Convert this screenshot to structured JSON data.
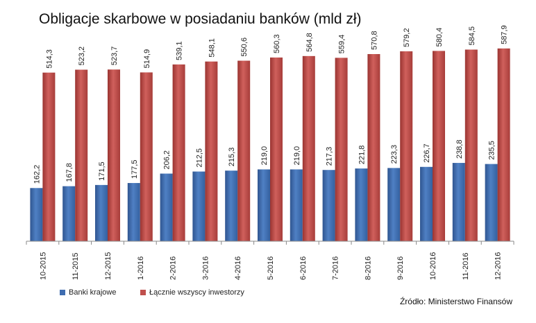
{
  "chart_data": {
    "type": "bar",
    "title": "Obligacje skarbowe w posiadaniu banków (mld zł)",
    "source": "Źródło: Ministerstwo Finansów",
    "categories": [
      "10-2015",
      "11-2015",
      "12-2015",
      "1-2016",
      "2-2016",
      "3-2016",
      "4-2016",
      "5-2016",
      "6-2016",
      "7-2016",
      "8-2016",
      "9-2016",
      "10-2016",
      "11-2016",
      "12-2016"
    ],
    "series": [
      {
        "name": "Banki krajowe",
        "color": "#3f6db0",
        "values": [
          162.2,
          167.8,
          171.5,
          177.5,
          206.2,
          212.5,
          215.3,
          219.0,
          219.0,
          217.3,
          221.8,
          223.3,
          226.7,
          238.8,
          235.5
        ],
        "labels": [
          "162,2",
          "167,8",
          "171,5",
          "177,5",
          "206,2",
          "212,5",
          "215,3",
          "219,0",
          "219,0",
          "217,3",
          "221,8",
          "223,3",
          "226,7",
          "238,8",
          "235,5"
        ]
      },
      {
        "name": "Łącznie wszyscy inwestorzy",
        "color": "#c0504d",
        "values": [
          514.3,
          523.2,
          523.7,
          514.9,
          539.1,
          548.1,
          550.6,
          560.3,
          564.8,
          559.4,
          570.8,
          579.2,
          580.4,
          584.5,
          587.9
        ],
        "labels": [
          "514,3",
          "523,2",
          "523,7",
          "514,9",
          "539,1",
          "548,1",
          "550,6",
          "560,3",
          "564,8",
          "559,4",
          "570,8",
          "579,2",
          "580,4",
          "584,5",
          "587,9"
        ]
      }
    ],
    "ylim": [
      0,
      600
    ],
    "grid": false,
    "legend_position": "bottom-left"
  }
}
